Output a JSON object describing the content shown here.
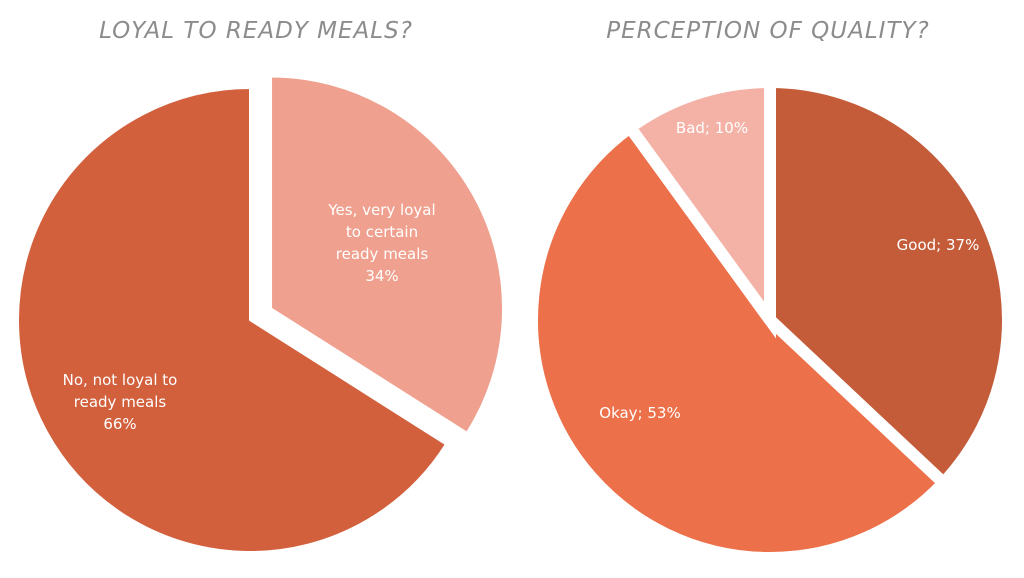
{
  "chart_data": [
    {
      "type": "pie",
      "title": "LOYAL TO READY MEALS?",
      "slices": [
        {
          "label_lines": [
            "Yes, very loyal",
            "to certain",
            "ready meals",
            "34%"
          ],
          "value": 34,
          "color": "#f0a08e",
          "exploded": true
        },
        {
          "label_lines": [
            "No, not loyal to",
            "ready meals",
            "66%"
          ],
          "value": 66,
          "color": "#d2603d",
          "exploded": false
        }
      ]
    },
    {
      "type": "pie",
      "title": "PERCEPTION OF QUALITY?",
      "slices": [
        {
          "label_lines": [
            "Good; 37%"
          ],
          "value": 37,
          "color": "#c45c3a",
          "exploded": false
        },
        {
          "label_lines": [
            "Okay; 53%"
          ],
          "value": 53,
          "color": "#ec7049",
          "exploded": false
        },
        {
          "label_lines": [
            "Bad; 10%"
          ],
          "value": 10,
          "color": "#f4b2a6",
          "exploded": false
        }
      ]
    }
  ]
}
